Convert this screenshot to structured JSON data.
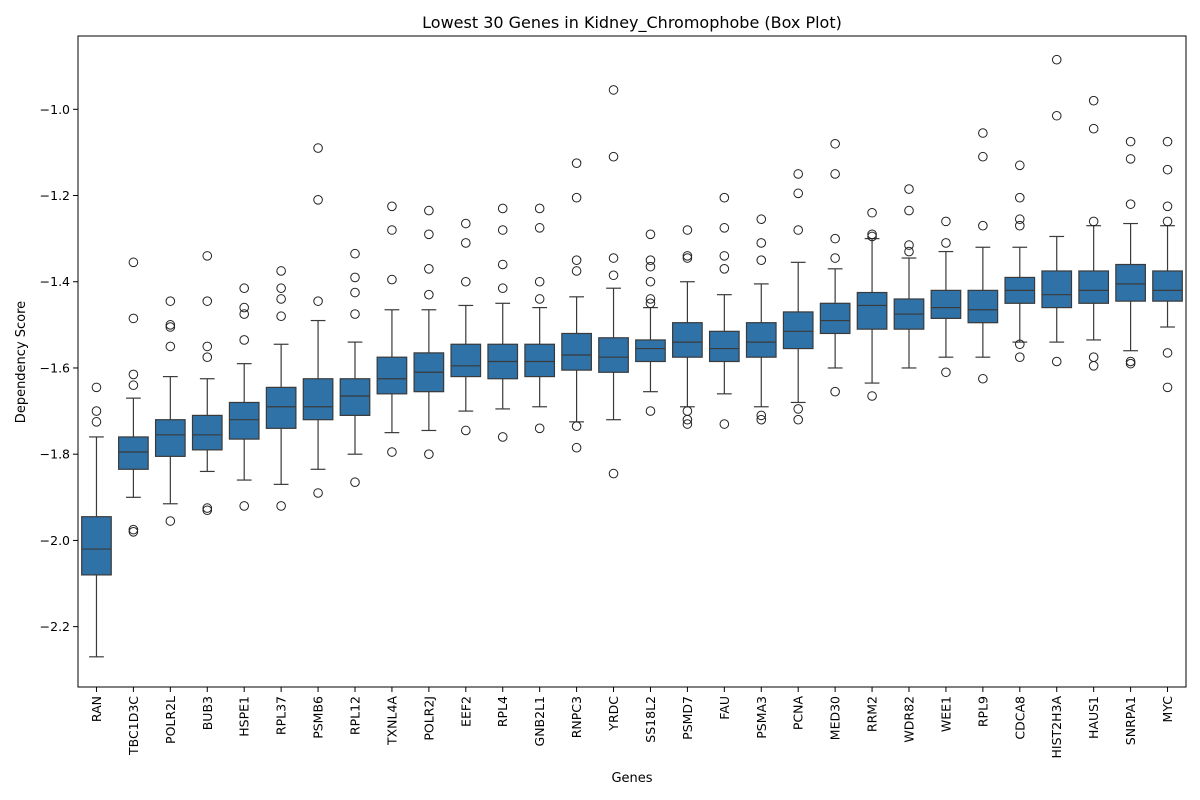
{
  "chart_data": {
    "type": "box",
    "title": "Lowest 30 Genes in Kidney_Chromophobe (Box Plot)",
    "xlabel": "Genes",
    "ylabel": "Dependency Score",
    "ylim": [
      -2.34,
      -0.83
    ],
    "yticks": [
      -2.2,
      -2.0,
      -1.8,
      -1.6,
      -1.4,
      -1.2,
      -1.0
    ],
    "ytick_labels": [
      "−2.2",
      "−2.0",
      "−1.8",
      "−1.6",
      "−1.4",
      "−1.2",
      "−1.0"
    ],
    "grid": false,
    "box_color": "#2f72a8",
    "line_color": "#3a3a3a",
    "categories": [
      "RAN",
      "TBC1D3C",
      "POLR2L",
      "BUB3",
      "HSPE1",
      "RPL37",
      "PSMB6",
      "RPL12",
      "TXNL4A",
      "POLR2J",
      "EEF2",
      "RPL4",
      "GNB2L1",
      "RNPC3",
      "YRDC",
      "SS18L2",
      "PSMD7",
      "FAU",
      "PSMA3",
      "PCNA",
      "MED30",
      "RRM2",
      "WDR82",
      "WEE1",
      "RPL9",
      "CDCA8",
      "HIST2H3A",
      "HAUS1",
      "SNRPA1",
      "MYC"
    ],
    "boxes": [
      {
        "q1": -2.08,
        "median": -2.02,
        "q3": -1.945,
        "whislo": -2.27,
        "whishi": -1.76,
        "fliers": [
          -1.645,
          -1.7,
          -1.725
        ]
      },
      {
        "q1": -1.835,
        "median": -1.795,
        "q3": -1.76,
        "whislo": -1.9,
        "whishi": -1.67,
        "fliers": [
          -1.355,
          -1.485,
          -1.615,
          -1.64,
          -1.975,
          -1.98
        ]
      },
      {
        "q1": -1.805,
        "median": -1.755,
        "q3": -1.72,
        "whislo": -1.915,
        "whishi": -1.62,
        "fliers": [
          -1.445,
          -1.5,
          -1.505,
          -1.55,
          -1.955
        ]
      },
      {
        "q1": -1.79,
        "median": -1.755,
        "q3": -1.71,
        "whislo": -1.84,
        "whishi": -1.625,
        "fliers": [
          -1.34,
          -1.445,
          -1.55,
          -1.575,
          -1.925,
          -1.93
        ]
      },
      {
        "q1": -1.765,
        "median": -1.72,
        "q3": -1.68,
        "whislo": -1.86,
        "whishi": -1.59,
        "fliers": [
          -1.415,
          -1.46,
          -1.475,
          -1.535,
          -1.92
        ]
      },
      {
        "q1": -1.74,
        "median": -1.69,
        "q3": -1.645,
        "whislo": -1.87,
        "whishi": -1.545,
        "fliers": [
          -1.375,
          -1.415,
          -1.44,
          -1.48,
          -1.92
        ]
      },
      {
        "q1": -1.72,
        "median": -1.69,
        "q3": -1.625,
        "whislo": -1.835,
        "whishi": -1.49,
        "fliers": [
          -1.09,
          -1.21,
          -1.445,
          -1.89
        ]
      },
      {
        "q1": -1.71,
        "median": -1.665,
        "q3": -1.625,
        "whislo": -1.8,
        "whishi": -1.54,
        "fliers": [
          -1.335,
          -1.39,
          -1.425,
          -1.475,
          -1.865
        ]
      },
      {
        "q1": -1.66,
        "median": -1.625,
        "q3": -1.575,
        "whislo": -1.75,
        "whishi": -1.465,
        "fliers": [
          -1.225,
          -1.28,
          -1.395,
          -1.795
        ]
      },
      {
        "q1": -1.655,
        "median": -1.61,
        "q3": -1.565,
        "whislo": -1.745,
        "whishi": -1.465,
        "fliers": [
          -1.235,
          -1.29,
          -1.37,
          -1.43,
          -1.8
        ]
      },
      {
        "q1": -1.62,
        "median": -1.595,
        "q3": -1.545,
        "whislo": -1.7,
        "whishi": -1.455,
        "fliers": [
          -1.265,
          -1.31,
          -1.4,
          -1.745
        ]
      },
      {
        "q1": -1.625,
        "median": -1.585,
        "q3": -1.545,
        "whislo": -1.695,
        "whishi": -1.45,
        "fliers": [
          -1.23,
          -1.28,
          -1.36,
          -1.415,
          -1.76
        ]
      },
      {
        "q1": -1.62,
        "median": -1.585,
        "q3": -1.545,
        "whislo": -1.69,
        "whishi": -1.46,
        "fliers": [
          -1.23,
          -1.275,
          -1.4,
          -1.44,
          -1.74
        ]
      },
      {
        "q1": -1.605,
        "median": -1.57,
        "q3": -1.52,
        "whislo": -1.725,
        "whishi": -1.435,
        "fliers": [
          -1.125,
          -1.205,
          -1.35,
          -1.375,
          -1.735,
          -1.785
        ]
      },
      {
        "q1": -1.61,
        "median": -1.575,
        "q3": -1.53,
        "whislo": -1.72,
        "whishi": -1.415,
        "fliers": [
          -0.955,
          -1.11,
          -1.345,
          -1.385,
          -1.845
        ]
      },
      {
        "q1": -1.585,
        "median": -1.555,
        "q3": -1.535,
        "whislo": -1.655,
        "whishi": -1.46,
        "fliers": [
          -1.29,
          -1.35,
          -1.365,
          -1.4,
          -1.44,
          -1.45,
          -1.7
        ]
      },
      {
        "q1": -1.575,
        "median": -1.54,
        "q3": -1.495,
        "whislo": -1.69,
        "whishi": -1.4,
        "fliers": [
          -1.28,
          -1.34,
          -1.345,
          -1.7,
          -1.72,
          -1.73
        ]
      },
      {
        "q1": -1.585,
        "median": -1.555,
        "q3": -1.515,
        "whislo": -1.66,
        "whishi": -1.43,
        "fliers": [
          -1.205,
          -1.275,
          -1.34,
          -1.37,
          -1.73
        ]
      },
      {
        "q1": -1.575,
        "median": -1.54,
        "q3": -1.495,
        "whislo": -1.69,
        "whishi": -1.405,
        "fliers": [
          -1.255,
          -1.31,
          -1.35,
          -1.71,
          -1.72
        ]
      },
      {
        "q1": -1.555,
        "median": -1.515,
        "q3": -1.47,
        "whislo": -1.68,
        "whishi": -1.355,
        "fliers": [
          -1.15,
          -1.195,
          -1.28,
          -1.695,
          -1.72
        ]
      },
      {
        "q1": -1.52,
        "median": -1.49,
        "q3": -1.45,
        "whislo": -1.6,
        "whishi": -1.37,
        "fliers": [
          -1.08,
          -1.15,
          -1.3,
          -1.345,
          -1.655
        ]
      },
      {
        "q1": -1.51,
        "median": -1.455,
        "q3": -1.425,
        "whislo": -1.635,
        "whishi": -1.3,
        "fliers": [
          -1.24,
          -1.29,
          -1.295,
          -1.665
        ]
      },
      {
        "q1": -1.51,
        "median": -1.475,
        "q3": -1.44,
        "whislo": -1.6,
        "whishi": -1.345,
        "fliers": [
          -1.185,
          -1.235,
          -1.315,
          -1.33
        ]
      },
      {
        "q1": -1.485,
        "median": -1.46,
        "q3": -1.42,
        "whislo": -1.575,
        "whishi": -1.33,
        "fliers": [
          -1.26,
          -1.31,
          -1.61
        ]
      },
      {
        "q1": -1.495,
        "median": -1.465,
        "q3": -1.42,
        "whislo": -1.575,
        "whishi": -1.32,
        "fliers": [
          -1.055,
          -1.11,
          -1.27,
          -1.625
        ]
      },
      {
        "q1": -1.45,
        "median": -1.42,
        "q3": -1.39,
        "whislo": -1.54,
        "whishi": -1.32,
        "fliers": [
          -1.13,
          -1.205,
          -1.255,
          -1.27,
          -1.545,
          -1.575
        ]
      },
      {
        "q1": -1.46,
        "median": -1.43,
        "q3": -1.375,
        "whislo": -1.54,
        "whishi": -1.295,
        "fliers": [
          -0.885,
          -1.015,
          -1.585
        ]
      },
      {
        "q1": -1.45,
        "median": -1.42,
        "q3": -1.375,
        "whislo": -1.535,
        "whishi": -1.27,
        "fliers": [
          -0.98,
          -1.045,
          -1.26,
          -1.575,
          -1.595
        ]
      },
      {
        "q1": -1.445,
        "median": -1.405,
        "q3": -1.36,
        "whislo": -1.56,
        "whishi": -1.265,
        "fliers": [
          -1.075,
          -1.115,
          -1.22,
          -1.585,
          -1.59
        ]
      },
      {
        "q1": -1.445,
        "median": -1.42,
        "q3": -1.375,
        "whislo": -1.505,
        "whishi": -1.27,
        "fliers": [
          -1.075,
          -1.14,
          -1.225,
          -1.26,
          -1.565,
          -1.645
        ]
      }
    ]
  }
}
